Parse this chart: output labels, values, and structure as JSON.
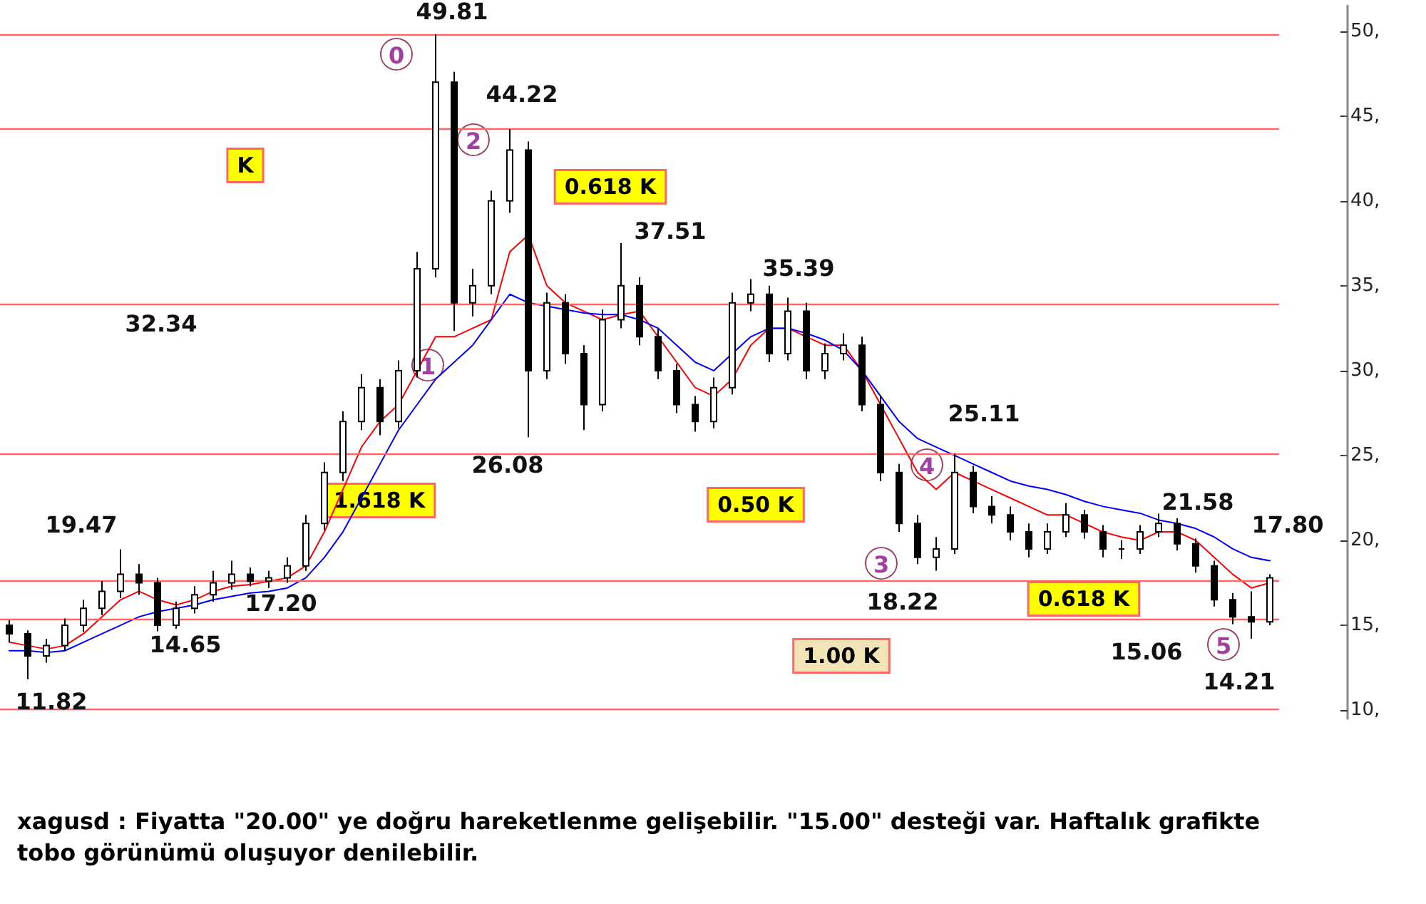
{
  "chart_data": {
    "type": "candlestick",
    "categories": [
      null,
      null,
      null,
      null,
      null,
      null,
      null,
      null,
      null,
      null,
      null,
      null,
      null,
      null,
      null,
      null,
      null,
      null,
      null,
      null,
      null,
      null,
      null,
      null,
      null,
      null,
      null,
      null,
      null,
      null,
      null,
      null,
      null,
      null,
      null,
      null,
      null,
      null,
      null,
      null,
      null,
      null,
      null,
      null,
      null,
      null,
      null,
      null,
      null,
      null,
      null,
      null,
      null,
      null,
      null,
      null,
      null,
      null,
      null,
      null,
      null,
      null,
      null,
      null,
      null,
      null,
      null,
      null,
      null
    ],
    "series": [
      {
        "color": "#000000",
        "ohlc": [
          [
            15,
            15.3,
            14,
            14.5
          ],
          [
            14.5,
            14.7,
            11.82,
            13.2
          ],
          [
            13.2,
            14.2,
            12.8,
            13.8
          ],
          [
            13.8,
            15.4,
            13.5,
            15
          ],
          [
            15,
            16.5,
            14.6,
            16
          ],
          [
            16,
            17.6,
            15.6,
            17
          ],
          [
            17,
            19.47,
            16.6,
            18
          ],
          [
            18,
            18.6,
            16.8,
            17.5
          ],
          [
            17.5,
            17.8,
            14.65,
            15
          ],
          [
            15,
            16.4,
            14.8,
            16
          ],
          [
            16,
            17.3,
            15.7,
            16.8
          ],
          [
            16.8,
            18.2,
            16.4,
            17.5
          ],
          [
            17.5,
            18.8,
            17.1,
            18
          ],
          [
            18,
            18.4,
            17.3,
            17.6
          ],
          [
            17.6,
            18.2,
            17.2,
            17.8
          ],
          [
            17.8,
            19,
            17.5,
            18.5
          ],
          [
            18.5,
            21.5,
            18.2,
            21
          ],
          [
            21,
            24.6,
            20.6,
            24
          ],
          [
            24,
            27.6,
            23.5,
            27
          ],
          [
            27,
            29.8,
            26.5,
            29
          ],
          [
            29,
            29.5,
            26.2,
            27
          ],
          [
            27,
            30.6,
            26.6,
            30
          ],
          [
            30,
            37,
            29.6,
            36
          ],
          [
            36,
            49.81,
            35.5,
            47
          ],
          [
            47,
            47.6,
            32.34,
            34
          ],
          [
            34,
            36,
            33.2,
            35
          ],
          [
            35,
            40.6,
            34.5,
            40
          ],
          [
            40,
            44.22,
            39.3,
            43
          ],
          [
            43,
            43.5,
            26.08,
            30
          ],
          [
            30,
            34.6,
            29.5,
            34
          ],
          [
            34,
            34.5,
            30.4,
            31
          ],
          [
            31,
            31.5,
            26.5,
            28
          ],
          [
            28,
            33.6,
            27.6,
            33
          ],
          [
            33,
            37.51,
            32.5,
            35
          ],
          [
            35,
            35.5,
            31.5,
            32
          ],
          [
            32,
            32.5,
            29.5,
            30
          ],
          [
            30,
            30.4,
            27.5,
            28
          ],
          [
            28,
            28.5,
            26.4,
            27
          ],
          [
            27,
            29.6,
            26.6,
            29
          ],
          [
            29,
            34.6,
            28.6,
            34
          ],
          [
            34,
            35.39,
            33.5,
            34.5
          ],
          [
            34.5,
            35,
            30.5,
            31
          ],
          [
            31,
            34.3,
            30.6,
            33.5
          ],
          [
            33.5,
            34,
            29.5,
            30
          ],
          [
            30,
            31.6,
            29.5,
            31
          ],
          [
            31,
            32.2,
            30.6,
            31.5
          ],
          [
            31.5,
            32,
            27.6,
            28
          ],
          [
            28,
            28.5,
            23.5,
            24
          ],
          [
            24,
            24.5,
            20.5,
            21
          ],
          [
            21,
            21.5,
            18.6,
            19
          ],
          [
            19,
            20.2,
            18.22,
            19.5
          ],
          [
            19.5,
            25.11,
            19.2,
            24
          ],
          [
            24,
            24.4,
            21.6,
            22
          ],
          [
            22,
            22.6,
            21,
            21.5
          ],
          [
            21.5,
            22,
            20,
            20.5
          ],
          [
            20.5,
            21,
            19,
            19.5
          ],
          [
            19.5,
            21,
            19.2,
            20.5
          ],
          [
            20.5,
            22.2,
            20.2,
            21.5
          ],
          [
            21.5,
            21.8,
            20.1,
            20.5
          ],
          [
            20.5,
            20.9,
            19,
            19.5
          ],
          [
            19.5,
            20,
            18.9,
            19.5
          ],
          [
            19.5,
            20.9,
            19.2,
            20.5
          ],
          [
            20.5,
            21.58,
            20.2,
            21
          ],
          [
            21,
            21.3,
            19.4,
            19.8
          ],
          [
            19.8,
            20.1,
            18.1,
            18.5
          ],
          [
            18.5,
            18.8,
            16.1,
            16.5
          ],
          [
            16.5,
            16.9,
            15.06,
            15.5
          ],
          [
            15.5,
            17,
            14.21,
            15.2
          ],
          [
            15.2,
            18,
            15,
            17.8
          ]
        ]
      },
      {
        "type": "line",
        "color": "#ff0000",
        "values": [
          14,
          13.8,
          13.6,
          13.8,
          14.5,
          15.5,
          16.5,
          17,
          16.5,
          16.2,
          16.5,
          17,
          17.3,
          17.4,
          17.6,
          17.8,
          18.5,
          20.5,
          23,
          25.5,
          27,
          28,
          30,
          32,
          32,
          32.5,
          33,
          37,
          38,
          35,
          34,
          33.5,
          33,
          33.3,
          33.5,
          32,
          30.5,
          29,
          28.5,
          29.5,
          31.5,
          32.5,
          32.5,
          32,
          31.5,
          31.5,
          30,
          28,
          26,
          24,
          23,
          24,
          23.5,
          23,
          22.5,
          22,
          21.5,
          21.5,
          21,
          20.5,
          20.2,
          20,
          20.5,
          20.5,
          20,
          19,
          18,
          17.2,
          17.5
        ]
      },
      {
        "type": "line",
        "color": "#0000ff",
        "values": [
          13.5,
          13.5,
          13.4,
          13.5,
          14,
          14.5,
          15,
          15.5,
          15.8,
          16,
          16.2,
          16.5,
          16.7,
          16.9,
          17,
          17.2,
          17.8,
          19,
          20.5,
          22.5,
          24.5,
          26.5,
          28,
          29.5,
          30.5,
          31.5,
          33,
          34.5,
          34,
          33.8,
          33.6,
          33.4,
          33.3,
          33.3,
          33,
          32.5,
          31.5,
          30.5,
          30,
          31,
          32,
          32.5,
          32.5,
          32.2,
          31.8,
          31.2,
          30,
          28.5,
          27,
          26,
          25.5,
          25,
          24.5,
          24,
          23.5,
          23.2,
          23,
          22.7,
          22.3,
          22,
          21.8,
          21.6,
          21.2,
          21,
          20.7,
          20.2,
          19.5,
          19,
          18.8
        ]
      }
    ],
    "ylim": [
      9.5,
      51.5
    ],
    "yticks": [
      {
        "value": 10,
        "label": "10,"
      },
      {
        "value": 15,
        "label": "15,"
      },
      {
        "value": 20,
        "label": "20,"
      },
      {
        "value": 25,
        "label": "25,"
      },
      {
        "value": 30,
        "label": "30,"
      },
      {
        "value": 35,
        "label": "35,"
      },
      {
        "value": 40,
        "label": "40,"
      },
      {
        "value": 45,
        "label": "45,"
      },
      {
        "value": 50,
        "label": "50,"
      }
    ],
    "tick_labels": "y",
    "grid": false,
    "marker": "none",
    "line_style": "solid",
    "ref_lines": [
      {
        "axis": "y",
        "value": 49.81,
        "color": "#ff6666"
      },
      {
        "axis": "y",
        "value": 44.22,
        "color": "#ff6666"
      },
      {
        "axis": "y",
        "value": 33.9,
        "color": "#ff6666"
      },
      {
        "axis": "y",
        "value": 25.1,
        "color": "#ff6666"
      },
      {
        "axis": "y",
        "value": 17.6,
        "color": "#ff6666"
      },
      {
        "axis": "y",
        "value": 15.4,
        "color": "#ff6666"
      },
      {
        "axis": "y",
        "value": 10.1,
        "color": "#ff6666"
      }
    ],
    "annotations": [
      "49.81",
      "44.22",
      "37.51",
      "35.39",
      "25.11",
      "21.58",
      "19.47",
      "17.80",
      "11.82",
      "14.65",
      "17.20",
      "32.34",
      "26.08",
      "18.22",
      "15.06",
      "14.21",
      "K",
      "0.618 K",
      "1.618 K",
      "0.50 K",
      "1.00 K",
      "0.618 K",
      "0",
      "1",
      "2",
      "3",
      "4",
      "5",
      "xagusd : Fiyatta \"20.00\" ye doğru hareketlenme gelişebilir. \"15.00\" desteği var. Haftalık grafikte tobo görünümü oluşuyor denilebilir."
    ]
  }
}
